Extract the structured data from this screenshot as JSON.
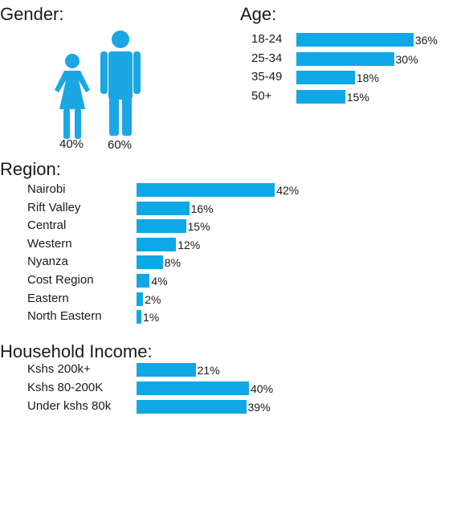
{
  "colors": {
    "bar": "#0fa8e6",
    "text": "#1a1a1a",
    "figure": "#1aa7e3"
  },
  "chart_data": [
    {
      "type": "bar",
      "title": "Gender:",
      "categories": [
        "Female",
        "Male"
      ],
      "values": [
        40,
        60
      ],
      "value_labels": [
        "40%",
        "60%"
      ],
      "icons": [
        "female-figure-icon",
        "male-figure-icon"
      ]
    },
    {
      "type": "bar",
      "orientation": "horizontal",
      "title": "Age:",
      "categories": [
        "18-24",
        "25-34",
        "35-49",
        "50+"
      ],
      "values": [
        36,
        30,
        18,
        15
      ],
      "value_labels": [
        "36%",
        "30%",
        "18%",
        "15%"
      ]
    },
    {
      "type": "bar",
      "orientation": "horizontal",
      "title": "Region:",
      "categories": [
        "Nairobi",
        "Rift Valley",
        "Central",
        "Western",
        "Nyanza",
        "Cost Region",
        "Eastern",
        "North Eastern"
      ],
      "values": [
        42,
        16,
        15,
        12,
        8,
        4,
        2,
        1
      ],
      "value_labels": [
        "42%",
        "16%",
        "15%",
        "12%",
        "8%",
        "4%",
        "2%",
        "1%"
      ]
    },
    {
      "type": "bar",
      "orientation": "horizontal",
      "title": "Household Income:",
      "categories": [
        "Kshs 200k+",
        "Kshs 80-200K",
        "Under kshs 80k"
      ],
      "values": [
        21,
        40,
        39
      ],
      "value_labels": [
        "21%",
        "40%",
        "39%"
      ]
    }
  ]
}
